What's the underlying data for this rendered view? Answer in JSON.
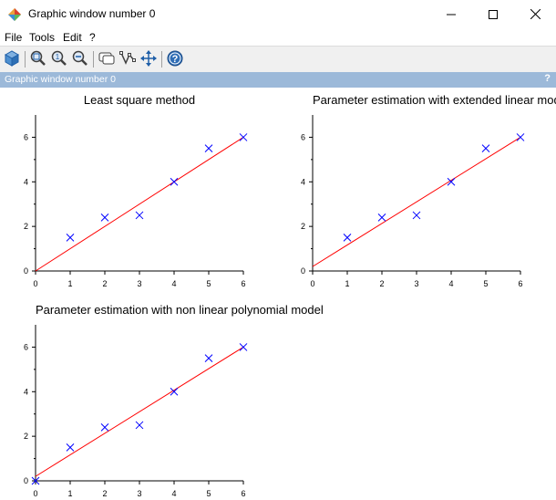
{
  "window": {
    "title": "Graphic window number 0"
  },
  "menu": {
    "file": "File",
    "tools": "Tools",
    "edit": "Edit",
    "help": "?"
  },
  "toolbar": {
    "icons": [
      "rotate-icon",
      "zoom-in-icon",
      "zoom-reset-icon",
      "zoom-out-icon",
      "datatip-icon",
      "editor-icon",
      "pan-icon",
      "help-icon"
    ]
  },
  "infobar": {
    "text": "Graphic window number 0",
    "help": "?"
  },
  "colors": {
    "points": "#0000ff",
    "fit_line": "#ff0000",
    "infobar": "#9cb9d9"
  },
  "chart_data": [
    {
      "type": "scatter",
      "title": "Least square method",
      "xlim": [
        0,
        6
      ],
      "ylim": [
        0,
        7
      ],
      "xticks": [
        0,
        1,
        2,
        3,
        4,
        5,
        6
      ],
      "yticks": [
        0,
        2,
        4,
        6
      ],
      "points": {
        "x": [
          1,
          2,
          3,
          4,
          5,
          6
        ],
        "y": [
          1.5,
          2.4,
          2.5,
          4.0,
          5.5,
          6.0
        ]
      },
      "fit_line": {
        "x": [
          0,
          6
        ],
        "y": [
          0.0,
          6.0
        ]
      }
    },
    {
      "type": "scatter",
      "title": "Parameter estimation with extended linear model",
      "xlim": [
        0,
        6
      ],
      "ylim": [
        0,
        7
      ],
      "xticks": [
        0,
        1,
        2,
        3,
        4,
        5,
        6
      ],
      "yticks": [
        0,
        2,
        4,
        6
      ],
      "points": {
        "x": [
          1,
          2,
          3,
          4,
          5,
          6
        ],
        "y": [
          1.5,
          2.4,
          2.5,
          4.0,
          5.5,
          6.0
        ]
      },
      "fit_line": {
        "x": [
          0,
          6
        ],
        "y": [
          0.2,
          6.0
        ]
      }
    },
    {
      "type": "scatter",
      "title": "Parameter estimation with non linear polynomial model",
      "xlim": [
        0,
        6
      ],
      "ylim": [
        0,
        7
      ],
      "xticks": [
        0,
        1,
        2,
        3,
        4,
        5,
        6
      ],
      "yticks": [
        0,
        2,
        4,
        6
      ],
      "points": {
        "x": [
          0,
          1,
          2,
          3,
          4,
          5,
          6
        ],
        "y": [
          0.0,
          1.5,
          2.4,
          2.5,
          4.0,
          5.5,
          6.0
        ]
      },
      "fit_line": {
        "x": [
          0,
          6
        ],
        "y": [
          0.2,
          6.0
        ]
      }
    }
  ]
}
